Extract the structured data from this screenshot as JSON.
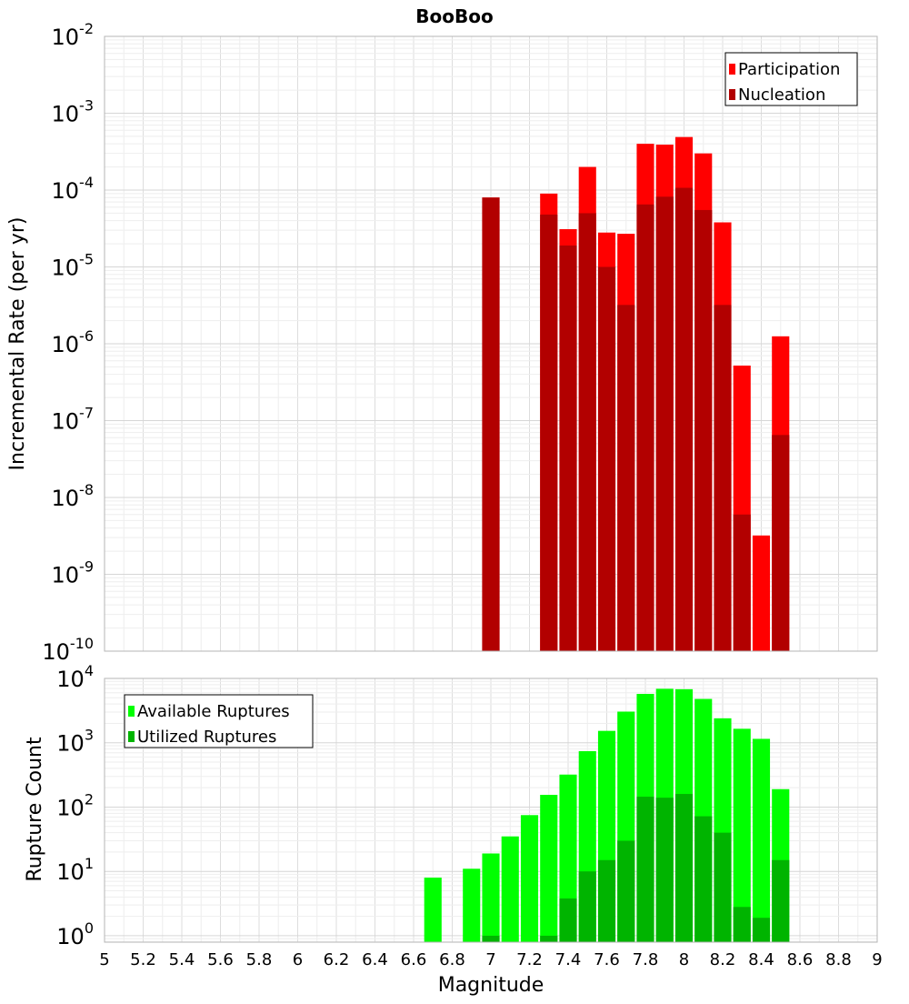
{
  "chart_data": [
    {
      "id": "rates",
      "type": "bar",
      "title": "BooBoo",
      "ylabel": "Incremental Rate (per yr)",
      "xlabel": "",
      "xlim": [
        5,
        9
      ],
      "ylim_log10": [
        -10,
        -2
      ],
      "yscale": "log",
      "y_ticks_exp": [
        "-2",
        "-3",
        "-4",
        "-5",
        "-6",
        "-7",
        "-8",
        "-9",
        "-10"
      ],
      "y_tick_base": "10",
      "grid": true,
      "legend_position": "top-right",
      "bar_width": 0.09,
      "series": [
        {
          "name": "Participation",
          "color": "#ff0000",
          "x": [
            7.0,
            7.3,
            7.4,
            7.5,
            7.6,
            7.7,
            7.8,
            7.9,
            8.0,
            8.1,
            8.2,
            8.3,
            8.4,
            8.5
          ],
          "values": [
            8e-05,
            9e-05,
            3.1e-05,
            0.0002,
            2.8e-05,
            2.7e-05,
            0.0004,
            0.00039,
            0.00049,
            0.0003,
            3.8e-05,
            5.2e-07,
            3.2e-09,
            1.25e-06
          ]
        },
        {
          "name": "Nucleation",
          "color": "#b20000",
          "x": [
            7.0,
            7.3,
            7.4,
            7.5,
            7.6,
            7.7,
            7.8,
            7.9,
            8.0,
            8.1,
            8.2,
            8.3,
            8.5
          ],
          "values": [
            8e-05,
            4.8e-05,
            1.9e-05,
            5e-05,
            1e-05,
            3.2e-06,
            6.5e-05,
            8.2e-05,
            0.000107,
            5.5e-05,
            3.2e-06,
            6e-09,
            6.5e-08
          ]
        }
      ]
    },
    {
      "id": "counts",
      "type": "bar",
      "title": "",
      "ylabel": "Rupture Count",
      "xlabel": "Magnitude",
      "xlim": [
        5,
        9
      ],
      "x_ticks": [
        "5",
        "5.2",
        "5.4",
        "5.6",
        "5.8",
        "6",
        "6.2",
        "6.4",
        "6.6",
        "6.8",
        "7",
        "7.2",
        "7.4",
        "7.6",
        "7.8",
        "8",
        "8.2",
        "8.4",
        "8.6",
        "8.8",
        "9"
      ],
      "ylim_log10": [
        -0.1,
        4
      ],
      "yscale": "log",
      "y_ticks_exp": [
        "4",
        "3",
        "2",
        "1",
        "0"
      ],
      "y_tick_base": "10",
      "grid": true,
      "legend_position": "top-left",
      "bar_width": 0.09,
      "series": [
        {
          "name": "Available Ruptures",
          "color": "#00ff00",
          "x": [
            6.7,
            6.9,
            7.0,
            7.1,
            7.2,
            7.3,
            7.4,
            7.5,
            7.6,
            7.7,
            7.8,
            7.9,
            8.0,
            8.1,
            8.2,
            8.3,
            8.4,
            8.5
          ],
          "values": [
            8,
            11,
            19,
            35,
            75,
            155,
            320,
            740,
            1530,
            3050,
            5750,
            6900,
            6800,
            4800,
            2400,
            1650,
            1150,
            190
          ]
        },
        {
          "name": "Utilized Ruptures",
          "color": "#00b400",
          "x": [
            7.0,
            7.3,
            7.4,
            7.5,
            7.6,
            7.7,
            7.8,
            7.9,
            8.0,
            8.1,
            8.2,
            8.3,
            8.4,
            8.5
          ],
          "values": [
            1,
            1,
            3.8,
            10,
            15,
            30,
            145,
            140,
            160,
            72,
            40,
            2.8,
            1.9,
            15
          ]
        }
      ]
    }
  ]
}
